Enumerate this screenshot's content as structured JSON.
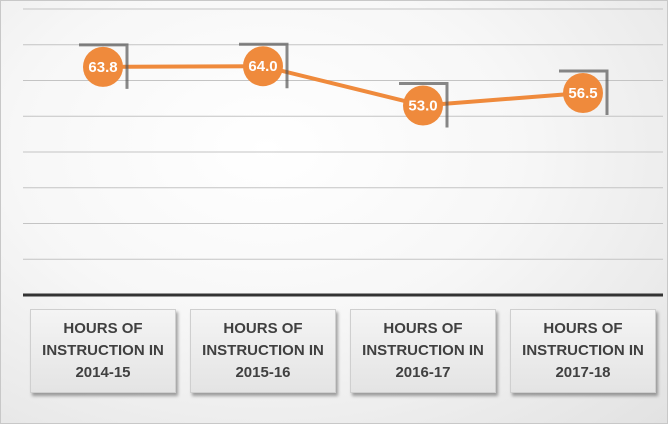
{
  "chart_data": {
    "type": "line",
    "categories": [
      "HOURS OF INSTRUCTION IN 2014-15",
      "HOURS OF INSTRUCTION IN 2015-16",
      "HOURS OF INSTRUCTION IN 2016-17",
      "HOURS OF INSTRUCTION IN 2017-18"
    ],
    "values": [
      63.8,
      64.0,
      53.0,
      56.5
    ],
    "value_labels": [
      "63.8",
      "64.0",
      "53.0",
      "56.5"
    ],
    "color": "#ef8a3c",
    "ylim": [
      0,
      80
    ],
    "yticks": [
      0,
      10,
      20,
      30,
      40,
      50,
      60,
      70,
      80
    ],
    "grid": true
  }
}
